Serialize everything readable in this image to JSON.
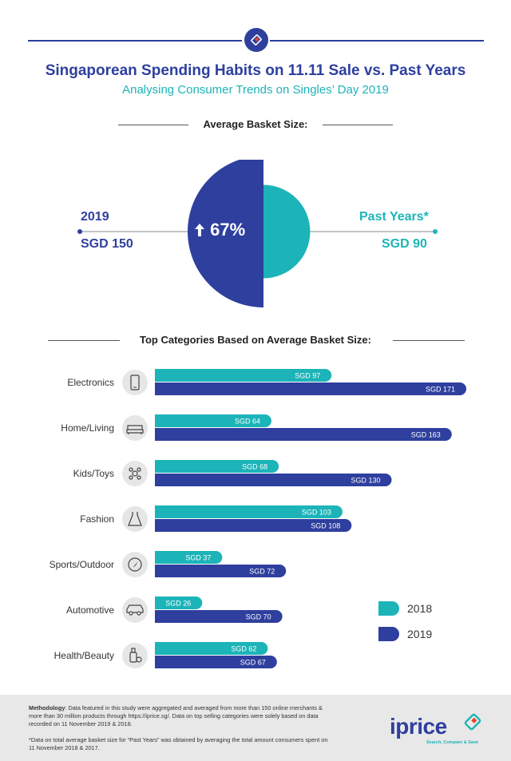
{
  "header": {
    "title": "Singaporean Spending Habits on 11.11 Sale vs. Past Years",
    "subtitle": "Analysing Consumer Trends on Singles’ Day 2019"
  },
  "basket": {
    "heading": "Average Basket Size:",
    "left_label": "2019",
    "left_value": "SGD 150",
    "right_label": "Past Years*",
    "right_value": "SGD 90",
    "change": "67%",
    "values": {
      "year_2019": 150,
      "past_years": 90
    }
  },
  "categories_heading": "Top Categories Based on Average Basket Size:",
  "chart_data": {
    "type": "bar",
    "orientation": "horizontal",
    "categories": [
      "Electronics",
      "Home/Living",
      "Kids/Toys",
      "Fashion",
      "Sports/Outdoor",
      "Automotive",
      "Health/Beauty"
    ],
    "icons": [
      "phone-icon",
      "sofa-icon",
      "toy-icon",
      "dress-icon",
      "compass-icon",
      "car-icon",
      "beauty-icon"
    ],
    "series": [
      {
        "name": "2018",
        "color": "#1cb4b8",
        "values": [
          97,
          64,
          68,
          103,
          37,
          26,
          62
        ],
        "labels": [
          "SGD 97",
          "SGD 64",
          "SGD 68",
          "SGD 103",
          "SGD 37",
          "SGD 26",
          "SGD 62"
        ]
      },
      {
        "name": "2019",
        "color": "#2e3f9e",
        "values": [
          171,
          163,
          130,
          108,
          72,
          70,
          67
        ],
        "labels": [
          "SGD 171",
          "SGD 163",
          "SGD 130",
          "SGD 108",
          "SGD 72",
          "SGD 70",
          "SGD 67"
        ]
      }
    ],
    "title": "Top Categories Based on Average Basket Size:",
    "legend": "right",
    "grid": false
  },
  "footer": {
    "methodology_label": "Methodology",
    "methodology_text": ": Data featured in this study were aggregated and averaged from more than 150 online merchants & more than 30 million products through https://iprice.sg/. Data on top selling categories were solely based on data recorded on 11 November 2019 & 2018.",
    "note": "*Data on total average basket size for “Past Years” was obtained by averaging the total amount consumers spent on 11 November 2018 & 2017.",
    "logo": "iprice",
    "tagline": "Search, Compare & Save"
  }
}
